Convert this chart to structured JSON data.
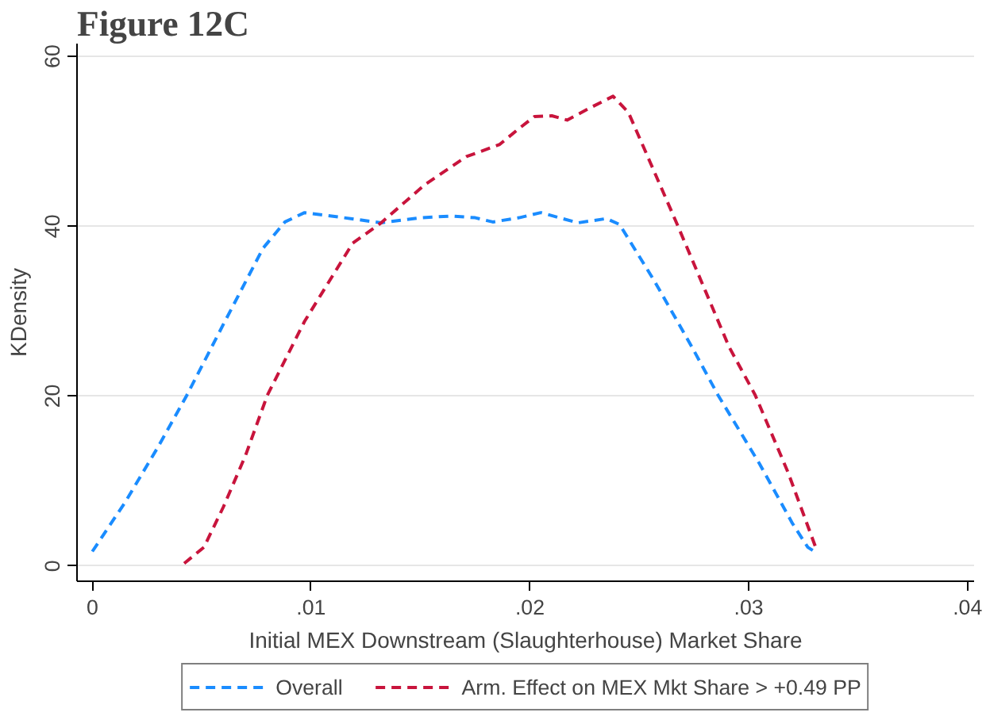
{
  "chart_data": {
    "type": "line",
    "title": "Figure 12C",
    "xlabel": "Initial MEX Downstream (Slaughterhouse) Market Share",
    "ylabel": "KDensity",
    "xlim": [
      -0.0007,
      0.0403
    ],
    "ylim": [
      -1.8,
      61.5
    ],
    "xticks": [
      {
        "value": 0,
        "label": "0"
      },
      {
        "value": 0.01,
        "label": ".01"
      },
      {
        "value": 0.02,
        "label": ".02"
      },
      {
        "value": 0.03,
        "label": ".03"
      },
      {
        "value": 0.04,
        "label": ".04"
      }
    ],
    "yticks": [
      0,
      20,
      40,
      60
    ],
    "grid": "y",
    "legend": "bottom",
    "line_style": "dashed",
    "marker": "none",
    "series": [
      {
        "name": "Overall",
        "color": "#1a8cff",
        "x": [
          0.0,
          0.0015,
          0.003,
          0.0043,
          0.006,
          0.0078,
          0.0088,
          0.0097,
          0.0115,
          0.0132,
          0.015,
          0.0164,
          0.0175,
          0.0183,
          0.0195,
          0.0205,
          0.0222,
          0.0235,
          0.0241,
          0.0257,
          0.0274,
          0.0286,
          0.0305,
          0.032,
          0.0327,
          0.033
        ],
        "values": [
          1.7,
          7.5,
          14,
          20,
          28.5,
          37.4,
          40.5,
          41.6,
          41.0,
          40.4,
          41.0,
          41.2,
          41.0,
          40.5,
          41.0,
          41.6,
          40.4,
          40.9,
          40.2,
          33.5,
          25.8,
          20.1,
          12,
          5,
          2.2,
          1.7
        ]
      },
      {
        "name": "Arm. Effect on MEX Mkt Share > +0.49 PP",
        "color": "#c8143c",
        "x": [
          0.0042,
          0.0051,
          0.006,
          0.007,
          0.008,
          0.0097,
          0.0119,
          0.0132,
          0.0152,
          0.0171,
          0.0186,
          0.0195,
          0.0202,
          0.021,
          0.0217,
          0.0228,
          0.0238,
          0.0245,
          0.0255,
          0.0267,
          0.028,
          0.0291,
          0.0303,
          0.0318,
          0.0331
        ],
        "values": [
          0.3,
          2.2,
          7,
          13,
          20.1,
          28.8,
          38,
          40.4,
          44.9,
          48.2,
          49.6,
          51.5,
          52.9,
          53,
          52.5,
          54,
          55.3,
          53.4,
          47.5,
          40.4,
          32.5,
          25.8,
          20.1,
          11,
          1.9
        ]
      }
    ]
  }
}
